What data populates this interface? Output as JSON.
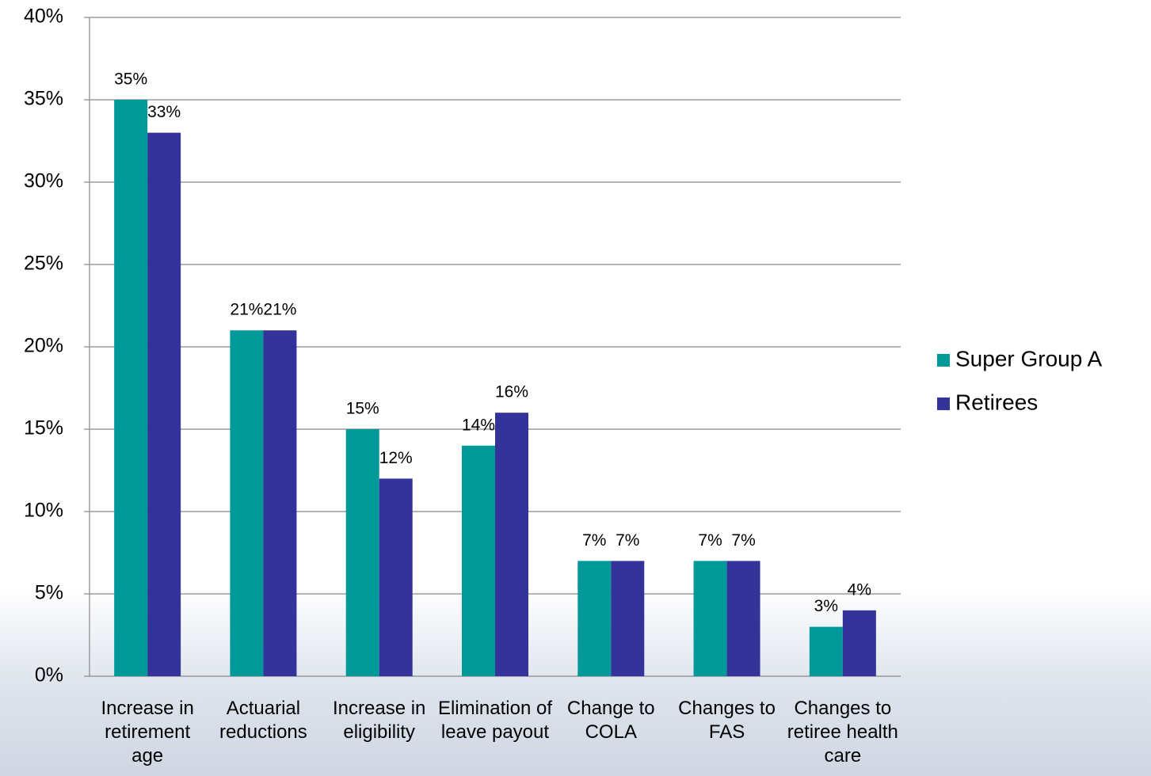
{
  "chart_data": {
    "type": "bar",
    "categories": [
      "Increase in retirement age",
      "Actuarial reductions",
      "Increase in eligibility",
      "Elimination of leave payout",
      "Change to COLA",
      "Changes to FAS",
      "Changes to retiree health care"
    ],
    "series": [
      {
        "name": "Super Group A",
        "color": "#009999",
        "values": [
          35,
          21,
          15,
          14,
          7,
          7,
          3
        ],
        "value_labels": [
          "35%",
          "21%",
          "15%",
          "14%",
          "7%",
          "7%",
          "3%"
        ]
      },
      {
        "name": "Retirees",
        "color": "#333399",
        "values": [
          33,
          21,
          12,
          16,
          7,
          7,
          4
        ],
        "value_labels": [
          "33%",
          "21%",
          "12%",
          "16%",
          "7%",
          "7%",
          "4%"
        ]
      }
    ],
    "ylim": [
      0,
      40
    ],
    "yticks": [
      {
        "value": 0,
        "label": "0%"
      },
      {
        "value": 5,
        "label": "5%"
      },
      {
        "value": 10,
        "label": "10%"
      },
      {
        "value": 15,
        "label": "15%"
      },
      {
        "value": 20,
        "label": "20%"
      },
      {
        "value": 25,
        "label": "25%"
      },
      {
        "value": 30,
        "label": "30%"
      },
      {
        "value": 35,
        "label": "35%"
      },
      {
        "value": 40,
        "label": "40%"
      }
    ],
    "grid": true,
    "legend": "right"
  }
}
